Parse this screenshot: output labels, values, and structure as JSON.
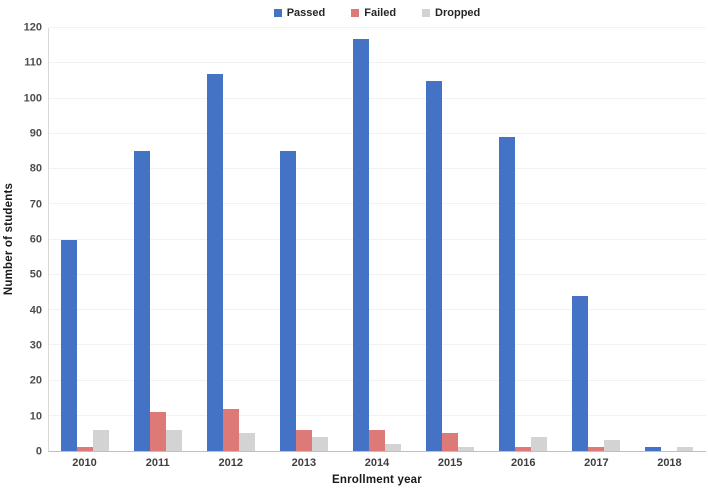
{
  "chart_data": {
    "type": "bar",
    "title": "",
    "xlabel": "Enrollment year",
    "ylabel": "Number of students",
    "categories": [
      "2010",
      "2011",
      "2012",
      "2013",
      "2014",
      "2015",
      "2016",
      "2017",
      "2018"
    ],
    "series": [
      {
        "name": "Passed",
        "color": "#4472c4",
        "values": [
          60,
          85,
          107,
          85,
          117,
          105,
          89,
          44,
          1
        ]
      },
      {
        "name": "Failed",
        "color": "#dd7a77",
        "values": [
          1,
          11,
          12,
          6,
          6,
          5,
          1,
          1,
          0
        ]
      },
      {
        "name": "Dropped",
        "color": "#d3d3d3",
        "values": [
          6,
          6,
          5,
          4,
          2,
          1,
          4,
          3,
          1
        ]
      }
    ],
    "ylim": [
      0,
      120
    ],
    "ytick_step": 10,
    "ytick_labels": [
      "0",
      "10",
      "20",
      "30",
      "40",
      "50",
      "60",
      "70",
      "80",
      "90",
      "100",
      "110",
      "120"
    ],
    "grid": true,
    "legend_position": "top",
    "colors": {
      "gridline": "#f2f2f2",
      "axis_line": "#d9d9d9",
      "tick_text": "#4d4d4d",
      "title_text": "#1a1a1a",
      "background": "#ffffff"
    }
  }
}
